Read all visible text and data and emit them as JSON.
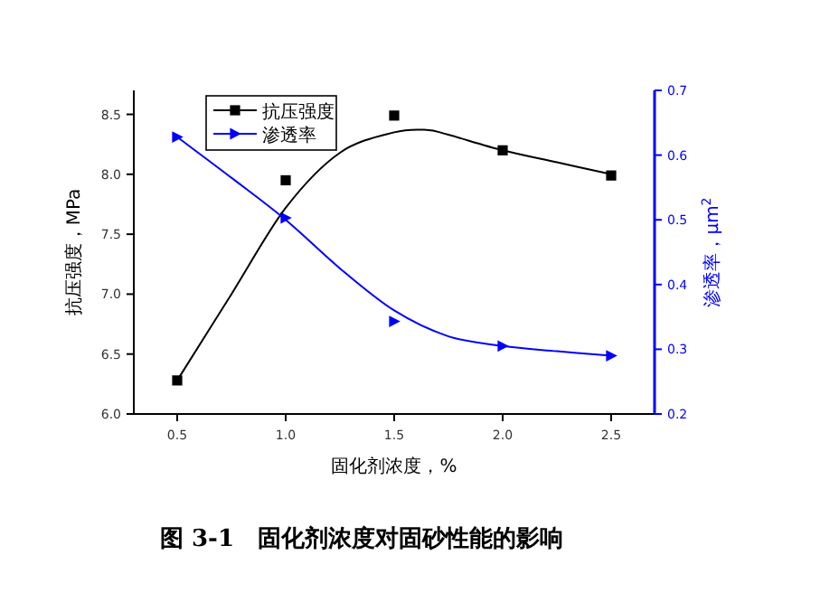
{
  "chart_data": {
    "type": "scatter",
    "title": "图 3-1　固化剂浓度对固砂性能的影响",
    "xlabel": "固化剂浓度，%",
    "ylabel": "抗压强度，MPa",
    "y2label": "渗透率，μm$^{2}$",
    "x": [
      0.5,
      1.0,
      1.5,
      2.0,
      2.5
    ],
    "xlim": [
      0.3,
      2.7
    ],
    "xticks": [
      {
        "value": 0.5,
        "label": "0.5"
      },
      {
        "value": 1,
        "label": "1.0"
      },
      {
        "value": 1.5,
        "label": "1.5"
      },
      {
        "value": 2,
        "label": "2.0"
      },
      {
        "value": 2.5,
        "label": "2.5"
      }
    ],
    "ylim": [
      6.0,
      8.7
    ],
    "yticks": [
      {
        "value": 6,
        "label": "6.0"
      },
      {
        "value": 6.5,
        "label": "6.5"
      },
      {
        "value": 7,
        "label": "7.0"
      },
      {
        "value": 7.5,
        "label": "7.5"
      },
      {
        "value": 8,
        "label": "8.0"
      },
      {
        "value": 8.5,
        "label": "8.5"
      }
    ],
    "y2lim": [
      0.2,
      0.7
    ],
    "y2ticks": [
      {
        "value": 0.2,
        "label": "0.2"
      },
      {
        "value": 0.3,
        "label": "0.3"
      },
      {
        "value": 0.4,
        "label": "0.4"
      },
      {
        "value": 0.5,
        "label": "0.5"
      },
      {
        "value": 0.6,
        "label": "0.6"
      },
      {
        "value": 0.7,
        "label": "0.7"
      }
    ],
    "legend": "top left",
    "series": [
      {
        "name": "抗压强度",
        "color": "#000000",
        "marker": "square",
        "values": [
          6.28,
          7.95,
          8.49,
          8.2,
          7.99
        ]
      },
      {
        "name": "渗透率",
        "color": "#0000ff",
        "marker": "triangle",
        "axis": "y2",
        "values": [
          0.628,
          0.503,
          0.343,
          0.305,
          0.29
        ]
      },
      {
        "type": "line",
        "color": "#000000",
        "x": [
          0.5,
          0.75,
          1.0,
          1.25,
          1.5,
          1.65,
          1.75,
          2.0,
          2.25,
          2.5
        ],
        "values": [
          6.28,
          7.0,
          7.72,
          8.18,
          8.35,
          8.37,
          8.33,
          8.2,
          8.1,
          8.0
        ]
      },
      {
        "type": "line",
        "color": "#0000ff",
        "axis": "y2",
        "x": [
          0.5,
          0.75,
          1.0,
          1.25,
          1.5,
          1.75,
          2.0,
          2.25,
          2.5
        ],
        "values": [
          0.628,
          0.565,
          0.5,
          0.425,
          0.36,
          0.32,
          0.305,
          0.297,
          0.29
        ]
      }
    ]
  }
}
